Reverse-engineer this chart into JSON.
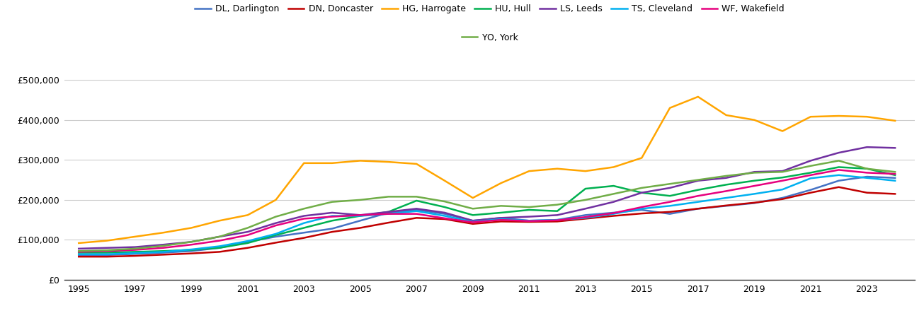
{
  "background_color": "#ffffff",
  "grid_color": "#cccccc",
  "ylim": [
    0,
    525000
  ],
  "yticks": [
    0,
    100000,
    200000,
    300000,
    400000,
    500000
  ],
  "xlim_min": 1994.5,
  "xlim_max": 2024.7,
  "xticks": [
    1995,
    1997,
    1999,
    2001,
    2003,
    2005,
    2007,
    2009,
    2011,
    2013,
    2015,
    2017,
    2019,
    2021,
    2023
  ],
  "series": {
    "DL, Darlington": {
      "color": "#4472c4",
      "data": {
        "1995": 62000,
        "1996": 62000,
        "1997": 65000,
        "1998": 68000,
        "1999": 72000,
        "2000": 80000,
        "2001": 95000,
        "2002": 108000,
        "2003": 118000,
        "2004": 128000,
        "2005": 148000,
        "2006": 168000,
        "2007": 175000,
        "2008": 165000,
        "2009": 148000,
        "2010": 155000,
        "2011": 148000,
        "2012": 150000,
        "2013": 162000,
        "2014": 168000,
        "2015": 175000,
        "2016": 165000,
        "2017": 178000,
        "2018": 185000,
        "2019": 192000,
        "2020": 205000,
        "2021": 225000,
        "2022": 248000,
        "2023": 258000,
        "2024": 255000
      }
    },
    "DN, Doncaster": {
      "color": "#c00000",
      "data": {
        "1995": 58000,
        "1996": 58000,
        "1997": 60000,
        "1998": 63000,
        "1999": 66000,
        "2000": 70000,
        "2001": 80000,
        "2002": 93000,
        "2003": 105000,
        "2004": 120000,
        "2005": 130000,
        "2006": 143000,
        "2007": 155000,
        "2008": 152000,
        "2009": 140000,
        "2010": 146000,
        "2011": 145000,
        "2012": 146000,
        "2013": 153000,
        "2014": 160000,
        "2015": 166000,
        "2016": 170000,
        "2017": 178000,
        "2018": 186000,
        "2019": 193000,
        "2020": 202000,
        "2021": 218000,
        "2022": 232000,
        "2023": 218000,
        "2024": 215000
      }
    },
    "HG, Harrogate": {
      "color": "#ffa500",
      "data": {
        "1995": 92000,
        "1996": 98000,
        "1997": 108000,
        "1998": 118000,
        "1999": 130000,
        "2000": 148000,
        "2001": 162000,
        "2002": 200000,
        "2003": 292000,
        "2004": 292000,
        "2005": 298000,
        "2006": 295000,
        "2007": 290000,
        "2008": 248000,
        "2009": 205000,
        "2010": 242000,
        "2011": 272000,
        "2012": 278000,
        "2013": 272000,
        "2014": 282000,
        "2015": 305000,
        "2016": 430000,
        "2017": 458000,
        "2018": 412000,
        "2019": 400000,
        "2020": 372000,
        "2021": 408000,
        "2022": 410000,
        "2023": 408000,
        "2024": 398000
      }
    },
    "HU, Hull": {
      "color": "#00b050",
      "data": {
        "1995": 68000,
        "1996": 68000,
        "1997": 70000,
        "1998": 72000,
        "1999": 75000,
        "2000": 80000,
        "2001": 92000,
        "2002": 112000,
        "2003": 130000,
        "2004": 148000,
        "2005": 160000,
        "2006": 170000,
        "2007": 198000,
        "2008": 182000,
        "2009": 162000,
        "2010": 168000,
        "2011": 175000,
        "2012": 172000,
        "2013": 228000,
        "2014": 235000,
        "2015": 218000,
        "2016": 210000,
        "2017": 225000,
        "2018": 238000,
        "2019": 248000,
        "2020": 256000,
        "2021": 268000,
        "2022": 282000,
        "2023": 278000,
        "2024": 262000
      }
    },
    "LS, Leeds": {
      "color": "#7030a0",
      "data": {
        "1995": 78000,
        "1996": 80000,
        "1997": 82000,
        "1998": 88000,
        "1999": 95000,
        "2000": 108000,
        "2001": 120000,
        "2002": 142000,
        "2003": 160000,
        "2004": 168000,
        "2005": 162000,
        "2006": 170000,
        "2007": 178000,
        "2008": 168000,
        "2009": 148000,
        "2010": 155000,
        "2011": 158000,
        "2012": 162000,
        "2013": 178000,
        "2014": 195000,
        "2015": 218000,
        "2016": 230000,
        "2017": 248000,
        "2018": 255000,
        "2019": 270000,
        "2020": 272000,
        "2021": 298000,
        "2022": 318000,
        "2023": 332000,
        "2024": 330000
      }
    },
    "TS, Cleveland": {
      "color": "#00b0f0",
      "data": {
        "1995": 64000,
        "1996": 64000,
        "1997": 67000,
        "1998": 70000,
        "1999": 76000,
        "2000": 84000,
        "2001": 97000,
        "2002": 115000,
        "2003": 142000,
        "2004": 160000,
        "2005": 160000,
        "2006": 165000,
        "2007": 172000,
        "2008": 160000,
        "2009": 145000,
        "2010": 152000,
        "2011": 148000,
        "2012": 150000,
        "2013": 155000,
        "2014": 165000,
        "2015": 178000,
        "2016": 185000,
        "2017": 195000,
        "2018": 205000,
        "2019": 215000,
        "2020": 226000,
        "2021": 254000,
        "2022": 262000,
        "2023": 255000,
        "2024": 248000
      }
    },
    "WF, Wakefield": {
      "color": "#e6007e",
      "data": {
        "1995": 70000,
        "1996": 72000,
        "1997": 75000,
        "1998": 80000,
        "1999": 88000,
        "2000": 98000,
        "2001": 112000,
        "2002": 136000,
        "2003": 153000,
        "2004": 158000,
        "2005": 162000,
        "2006": 165000,
        "2007": 165000,
        "2008": 154000,
        "2009": 144000,
        "2010": 150000,
        "2011": 147000,
        "2012": 149000,
        "2013": 157000,
        "2014": 167000,
        "2015": 182000,
        "2016": 195000,
        "2017": 210000,
        "2018": 222000,
        "2019": 235000,
        "2020": 248000,
        "2021": 262000,
        "2022": 275000,
        "2023": 268000,
        "2024": 265000
      }
    },
    "YO, York": {
      "color": "#70ad47",
      "data": {
        "1995": 72000,
        "1996": 74000,
        "1997": 78000,
        "1998": 85000,
        "1999": 95000,
        "2000": 108000,
        "2001": 130000,
        "2002": 158000,
        "2003": 178000,
        "2004": 195000,
        "2005": 200000,
        "2006": 208000,
        "2007": 208000,
        "2008": 196000,
        "2009": 178000,
        "2010": 185000,
        "2011": 182000,
        "2012": 188000,
        "2013": 200000,
        "2014": 215000,
        "2015": 230000,
        "2016": 240000,
        "2017": 250000,
        "2018": 260000,
        "2019": 268000,
        "2020": 270000,
        "2021": 285000,
        "2022": 298000,
        "2023": 278000,
        "2024": 270000
      }
    }
  },
  "legend_row1": [
    "DL, Darlington",
    "DN, Doncaster",
    "HG, Harrogate",
    "HU, Hull",
    "LS, Leeds",
    "TS, Cleveland",
    "WF, Wakefield"
  ],
  "legend_row2": [
    "YO, York"
  ],
  "linewidth": 1.8,
  "font_size_ticks": 9,
  "font_size_legend": 9
}
